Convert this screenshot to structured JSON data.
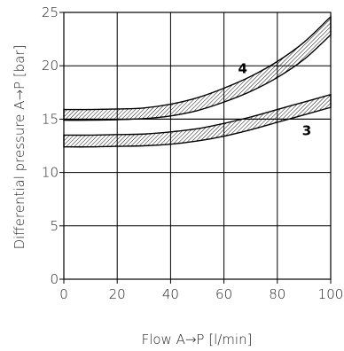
{
  "chart_data": {
    "type": "area",
    "xlabel": "Flow A→P [l/min]",
    "ylabel": "Differential pressure A→P [bar]",
    "xlim": [
      0,
      100
    ],
    "ylim": [
      0,
      25
    ],
    "x_ticks": [
      0,
      20,
      40,
      60,
      80,
      100
    ],
    "y_ticks": [
      0,
      5,
      10,
      15,
      20,
      25
    ],
    "x_tick_labels": [
      "0",
      "20",
      "40",
      "60",
      "80",
      "100"
    ],
    "y_tick_labels": [
      "0",
      "5",
      "10",
      "15",
      "20",
      "25"
    ],
    "grid": true,
    "band_fill": "hatched",
    "series": [
      {
        "name": "4",
        "x": [
          0,
          10,
          20,
          30,
          40,
          50,
          60,
          70,
          80,
          90,
          100
        ],
        "upper": [
          15.9,
          15.9,
          15.95,
          16.05,
          16.4,
          17.0,
          17.9,
          19.0,
          20.4,
          22.2,
          24.6
        ],
        "lower": [
          14.9,
          14.9,
          14.95,
          15.05,
          15.3,
          15.8,
          16.6,
          17.6,
          18.9,
          20.6,
          22.9
        ]
      },
      {
        "name": "3",
        "x": [
          0,
          10,
          20,
          30,
          40,
          50,
          60,
          70,
          80,
          90,
          100
        ],
        "upper": [
          13.5,
          13.5,
          13.55,
          13.6,
          13.8,
          14.1,
          14.6,
          15.2,
          15.9,
          16.6,
          17.3
        ],
        "lower": [
          12.4,
          12.4,
          12.45,
          12.5,
          12.65,
          12.95,
          13.4,
          14.0,
          14.7,
          15.4,
          16.1
        ]
      }
    ],
    "series_labels": [
      {
        "text": "4",
        "x": 67,
        "y": 19.3
      },
      {
        "text": "3",
        "x": 91,
        "y": 13.5
      }
    ],
    "reference_line": {
      "y": 15
    }
  }
}
